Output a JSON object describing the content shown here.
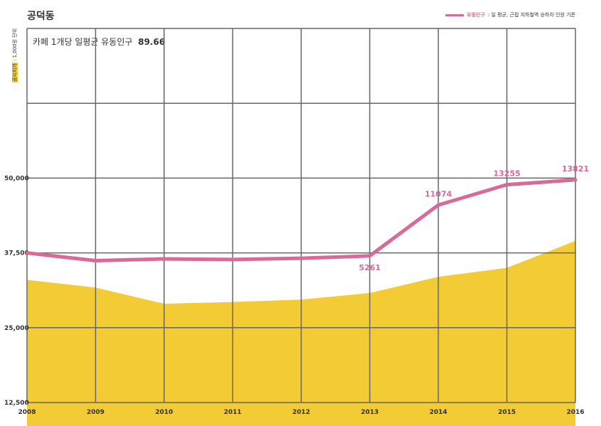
{
  "title": "공덕동",
  "legend": {
    "series_name": "유동인구",
    "note": ": 일 평균, 근접 지하철역 승하차 인원 기준"
  },
  "y_axis_label": {
    "badge": "공시지가",
    "unit": ": 1,000원 단위"
  },
  "subtitle": {
    "label": "카페 1개당 일평균 유동인구",
    "value": "89.66"
  },
  "colors": {
    "line": "#d96a98",
    "area": "#f2cb35",
    "grid": "#666666"
  },
  "chart_data": {
    "type": "area",
    "x": [
      "2008",
      "2009",
      "2010",
      "2011",
      "2012",
      "2013",
      "2014",
      "2015",
      "2016"
    ],
    "y_ticks": [
      "12,500",
      "25,000",
      "37,500",
      "50,000"
    ],
    "y_tick_values": [
      12500,
      25000,
      37500,
      50000
    ],
    "ylim": [
      12500,
      75000
    ],
    "grid": true,
    "legend_position": "top-right",
    "series": [
      {
        "name": "공시지가",
        "type": "area",
        "values": [
          33000,
          31700,
          29000,
          29300,
          29700,
          30800,
          33500,
          35000,
          39500
        ]
      },
      {
        "name": "유동인구",
        "type": "line",
        "values": [
          37500,
          36200,
          36500,
          36400,
          36600,
          37000,
          45500,
          48900,
          49700
        ],
        "labels": [
          "",
          "",
          "",
          "",
          "",
          "5261",
          "11074",
          "13255",
          "13821"
        ]
      }
    ]
  }
}
